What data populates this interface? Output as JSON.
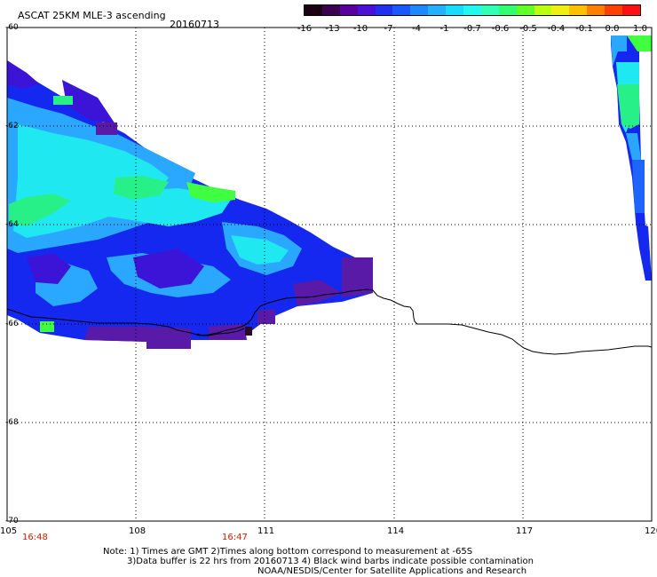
{
  "header": {
    "title": "ASCAT 25KM MLE-3 ascending",
    "date": "20160713"
  },
  "colorbar": {
    "colors": [
      "#1a0010",
      "#3c0050",
      "#5a00a0",
      "#4b10d8",
      "#2030f0",
      "#1858ff",
      "#1e88ff",
      "#22b0ff",
      "#18dcff",
      "#20f8f0",
      "#30ffb8",
      "#30ff70",
      "#60ff28",
      "#b8ff10",
      "#f0f010",
      "#ffc000",
      "#ff8000",
      "#ff4000",
      "#ff1010"
    ],
    "labels": [
      "-16",
      "-13",
      "-10",
      "-7",
      "-4",
      "-1",
      "-0.7",
      "-0.6",
      "-0.5",
      "-0.4",
      "-0.1",
      "0.0",
      "1.0"
    ]
  },
  "map": {
    "lat_labels": [
      "-60",
      "-62",
      "-64",
      "-66",
      "-68",
      "-70"
    ],
    "lon_labels": [
      "105",
      "108",
      "111",
      "114",
      "117",
      "120"
    ],
    "time_labels": [
      "16:48",
      "16:47"
    ],
    "land_color": "#000000",
    "colors": {
      "dark": "#2a0a2a",
      "purple": "#5a1aa8",
      "indigo": "#3c14d8",
      "blue": "#1428f0",
      "mblue": "#1e64ff",
      "sky": "#2aa8ff",
      "cyan": "#20e8f0",
      "green": "#28f088",
      "lgreen": "#40ff40"
    }
  },
  "notes": {
    "line1": "Note: 1) Times are GMT 2)Times along bottom correspond to measurement at -65S",
    "line2": "3)Data buffer is 22 hrs from 20160713 4) Black wind barbs indicate possible contamination",
    "line3": "NOAA/NESDIS/Center for Satellite Applications and Research"
  }
}
